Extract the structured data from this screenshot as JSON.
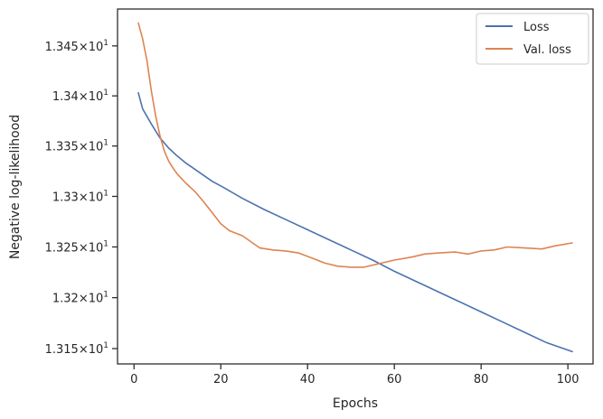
{
  "chart_data": {
    "type": "line",
    "xlabel": "Epochs",
    "ylabel": "Negative log-likelihood",
    "xlim": [
      -3.8,
      105.8
    ],
    "ylim": [
      13.135,
      13.487
    ],
    "x_ticks": [
      0,
      20,
      40,
      60,
      80,
      100
    ],
    "x_tick_labels": [
      "0",
      "20",
      "40",
      "60",
      "80",
      "100"
    ],
    "y_ticks": [
      13.15,
      13.2,
      13.25,
      13.3,
      13.35,
      13.4,
      13.45
    ],
    "y_tick_labels": [
      {
        "mantissa": "1.315",
        "base": "10",
        "exp": "1"
      },
      {
        "mantissa": "1.32",
        "base": "10",
        "exp": "1"
      },
      {
        "mantissa": "1.325",
        "base": "10",
        "exp": "1"
      },
      {
        "mantissa": "1.33",
        "base": "10",
        "exp": "1"
      },
      {
        "mantissa": "1.335",
        "base": "10",
        "exp": "1"
      },
      {
        "mantissa": "1.34",
        "base": "10",
        "exp": "1"
      },
      {
        "mantissa": "1.345",
        "base": "10",
        "exp": "1"
      }
    ],
    "y_scale": "log",
    "grid": false,
    "legend_position": "top-right",
    "series": [
      {
        "name": "Loss",
        "color": "#4c72b0",
        "x": [
          1,
          2,
          4,
          6,
          8,
          10,
          12,
          15,
          18,
          21,
          25,
          30,
          35,
          40,
          45,
          50,
          55,
          60,
          65,
          70,
          75,
          80,
          85,
          90,
          95,
          101
        ],
        "y": [
          13.403,
          13.387,
          13.372,
          13.358,
          13.348,
          13.34,
          13.333,
          13.324,
          13.315,
          13.308,
          13.298,
          13.287,
          13.277,
          13.267,
          13.257,
          13.247,
          13.237,
          13.226,
          13.216,
          13.206,
          13.196,
          13.186,
          13.176,
          13.166,
          13.156,
          13.147
        ]
      },
      {
        "name": "Val. loss",
        "color": "#dd8452",
        "x": [
          1,
          2,
          3,
          4,
          5,
          6,
          7,
          8,
          9,
          10,
          12,
          14,
          16,
          18,
          20,
          22,
          25,
          27,
          29,
          32,
          35,
          38,
          41,
          44,
          47,
          50,
          53,
          56,
          60,
          64,
          67,
          70,
          74,
          77,
          80,
          83,
          86,
          90,
          94,
          97,
          101
        ],
        "y": [
          13.473,
          13.457,
          13.435,
          13.405,
          13.38,
          13.36,
          13.345,
          13.335,
          13.328,
          13.322,
          13.313,
          13.305,
          13.295,
          13.284,
          13.273,
          13.266,
          13.261,
          13.255,
          13.249,
          13.247,
          13.246,
          13.244,
          13.239,
          13.234,
          13.231,
          13.23,
          13.23,
          13.233,
          13.237,
          13.24,
          13.243,
          13.244,
          13.245,
          13.243,
          13.246,
          13.247,
          13.25,
          13.249,
          13.248,
          13.251,
          13.254
        ]
      }
    ]
  }
}
